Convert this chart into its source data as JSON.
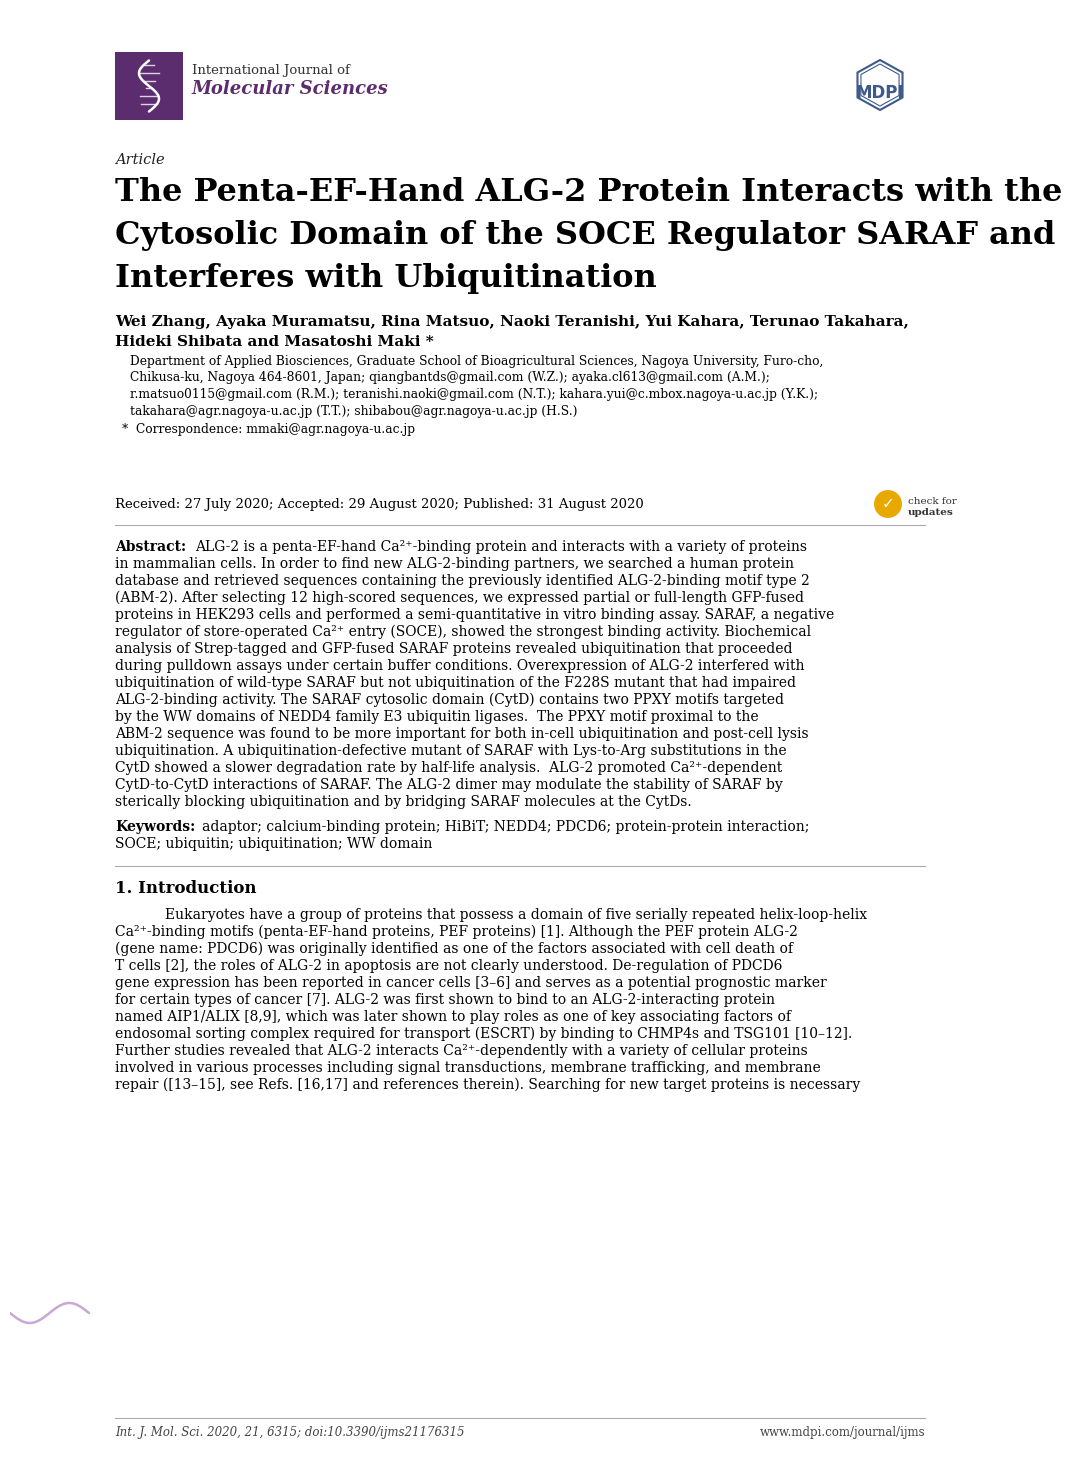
{
  "bg_color": "#ffffff",
  "journal_name_line1": "International Journal of",
  "journal_name_line2": "Molecular Sciences",
  "article_label": "Article",
  "title_lines": [
    "The Penta-EF-Hand ALG-2 Protein Interacts with the",
    "Cytosolic Domain of the SOCE Regulator SARAF and",
    "Interferes with Ubiquitination"
  ],
  "authors_line1": "Wei Zhang, Ayaka Muramatsu, Rina Matsuo, Naoki Teranishi, Yui Kahara, Terunao Takahara,",
  "authors_line2": "Hideki Shibata and Masatoshi Maki *",
  "aff_lines": [
    "Department of Applied Biosciences, Graduate School of Bioagricultural Sciences, Nagoya University, Furo-cho,",
    "Chikusa-ku, Nagoya 464-8601, Japan; qiangbantds@gmail.com (W.Z.); ayaka.cl613@gmail.com (A.M.);",
    "r.matsuo0115@gmail.com (R.M.); teranishi.naoki@gmail.com (N.T.); kahara.yui@c.mbox.nagoya-u.ac.jp (Y.K.);",
    "takahara@agr.nagoya-u.ac.jp (T.T.); shibabou@agr.nagoya-u.ac.jp (H.S.)"
  ],
  "correspondence": "*  Correspondence: mmaki@agr.nagoya-u.ac.jp",
  "received": "Received: 27 July 2020; Accepted: 29 August 2020; Published: 31 August 2020",
  "abstract_label": "Abstract:",
  "abstract_lines": [
    "ALG-2 is a penta-EF-hand Ca²⁺-binding protein and interacts with a variety of proteins",
    "in mammalian cells. In order to find new ALG-2-binding partners, we searched a human protein",
    "database and retrieved sequences containing the previously identified ALG-2-binding motif type 2",
    "(ABM-2). After selecting 12 high-scored sequences, we expressed partial or full-length GFP-fused",
    "proteins in HEK293 cells and performed a semi-quantitative in vitro binding assay. SARAF, a negative",
    "regulator of store-operated Ca²⁺ entry (SOCE), showed the strongest binding activity. Biochemical",
    "analysis of Strep-tagged and GFP-fused SARAF proteins revealed ubiquitination that proceeded",
    "during pulldown assays under certain buffer conditions. Overexpression of ALG-2 interfered with",
    "ubiquitination of wild-type SARAF but not ubiquitination of the F228S mutant that had impaired",
    "ALG-2-binding activity. The SARAF cytosolic domain (CytD) contains two PPXY motifs targeted",
    "by the WW domains of NEDD4 family E3 ubiquitin ligases.  The PPXY motif proximal to the",
    "ABM-2 sequence was found to be more important for both in-cell ubiquitination and post-cell lysis",
    "ubiquitination. A ubiquitination-defective mutant of SARAF with Lys-to-Arg substitutions in the",
    "CytD showed a slower degradation rate by half-life analysis.  ALG-2 promoted Ca²⁺-dependent",
    "CytD-to-CytD interactions of SARAF. The ALG-2 dimer may modulate the stability of SARAF by",
    "sterically blocking ubiquitination and by bridging SARAF molecules at the CytDs."
  ],
  "keywords_label": "Keywords:",
  "keywords_lines": [
    "adaptor; calcium-binding protein; HiBiT; NEDD4; PDCD6; protein-protein interaction;",
    "SOCE; ubiquitin; ubiquitination; WW domain"
  ],
  "section_title": "1. Introduction",
  "intro_lines": [
    "Eukaryotes have a group of proteins that possess a domain of five serially repeated helix-loop-helix",
    "Ca²⁺-binding motifs (penta-EF-hand proteins, PEF proteins) [1]. Although the PEF protein ALG-2",
    "(gene name: PDCD6) was originally identified as one of the factors associated with cell death of",
    "T cells [2], the roles of ALG-2 in apoptosis are not clearly understood. De-regulation of PDCD6",
    "gene expression has been reported in cancer cells [3–6] and serves as a potential prognostic marker",
    "for certain types of cancer [7]. ALG-2 was first shown to bind to an ALG-2-interacting protein",
    "named AIP1/ALIX [8,9], which was later shown to play roles as one of key associating factors of",
    "endosomal sorting complex required for transport (ESCRT) by binding to CHMP4s and TSG101 [10–12].",
    "Further studies revealed that ALG-2 interacts Ca²⁺-dependently with a variety of cellular proteins",
    "involved in various processes including signal transductions, membrane trafficking, and membrane",
    "repair ([13–15], see Refs. [16,17] and references therein). Searching for new target proteins is necessary"
  ],
  "footer_left": "Int. J. Mol. Sci. 2020, 21, 6315; doi:10.3390/ijms21176315",
  "footer_right": "www.mdpi.com/journal/ijms",
  "purple_color": "#5c2d6e",
  "dark_blue": "#3d5a8a",
  "text_color": "#000000",
  "gray_color": "#444444",
  "line_color": "#aaaaaa",
  "mdpi_color": "#3d5a8a"
}
